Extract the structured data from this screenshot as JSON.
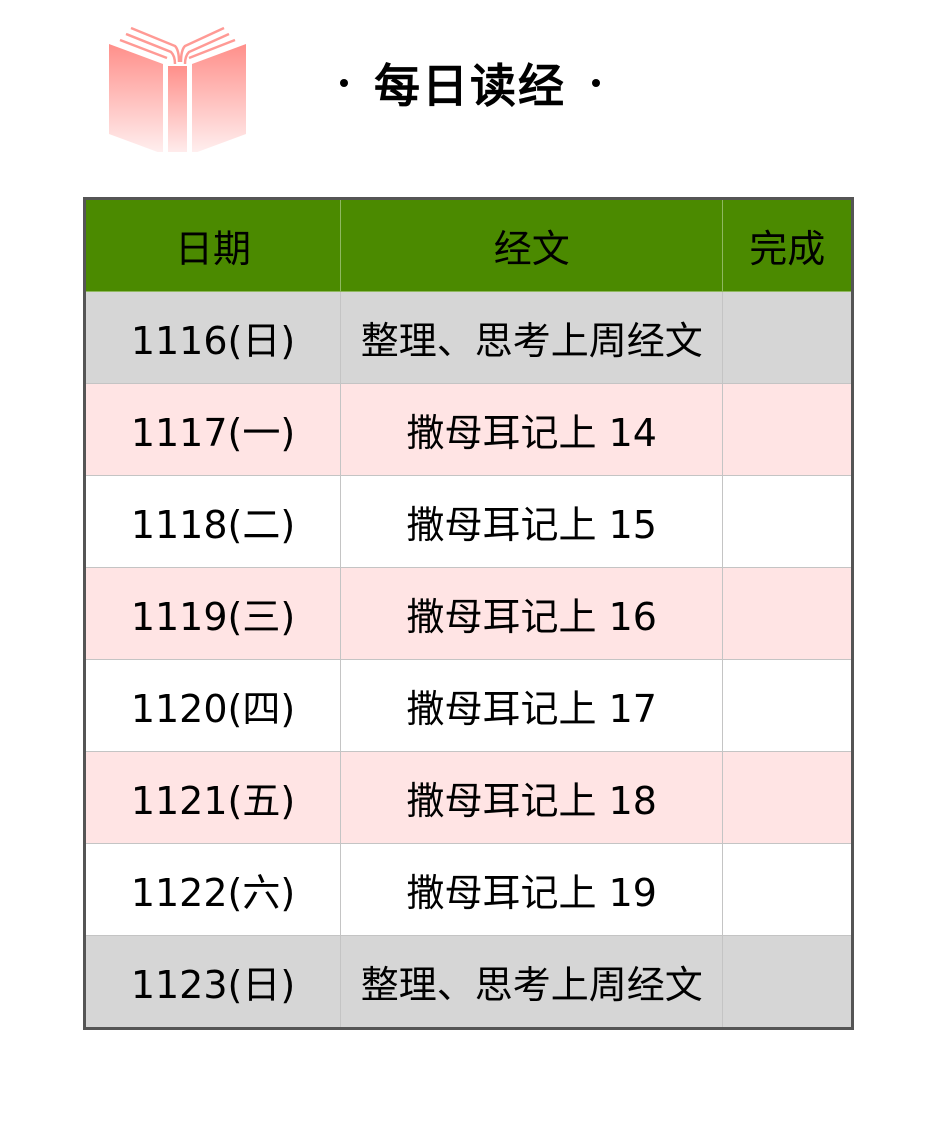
{
  "header": {
    "title": "每日读经",
    "logo_icon": "open-book-icon",
    "logo_color": "#ff8f8a"
  },
  "table": {
    "columns": [
      "日期",
      "经文",
      "完成"
    ],
    "header_color": "#4b8a00",
    "rows": [
      {
        "date": "1116(日)",
        "passage": "整理、思考上周经文",
        "done": "",
        "style": "gray"
      },
      {
        "date": "1117(一)",
        "passage": "撒母耳记上 14",
        "done": "",
        "style": "pink"
      },
      {
        "date": "1118(二)",
        "passage": "撒母耳记上 15",
        "done": "",
        "style": "white"
      },
      {
        "date": "1119(三)",
        "passage": "撒母耳记上 16",
        "done": "",
        "style": "pink"
      },
      {
        "date": "1120(四)",
        "passage": "撒母耳记上 17",
        "done": "",
        "style": "white"
      },
      {
        "date": "1121(五)",
        "passage": "撒母耳记上 18",
        "done": "",
        "style": "pink"
      },
      {
        "date": "1122(六)",
        "passage": "撒母耳记上 19",
        "done": "",
        "style": "white"
      },
      {
        "date": "1123(日)",
        "passage": "整理、思考上周经文",
        "done": "",
        "style": "gray"
      }
    ]
  }
}
